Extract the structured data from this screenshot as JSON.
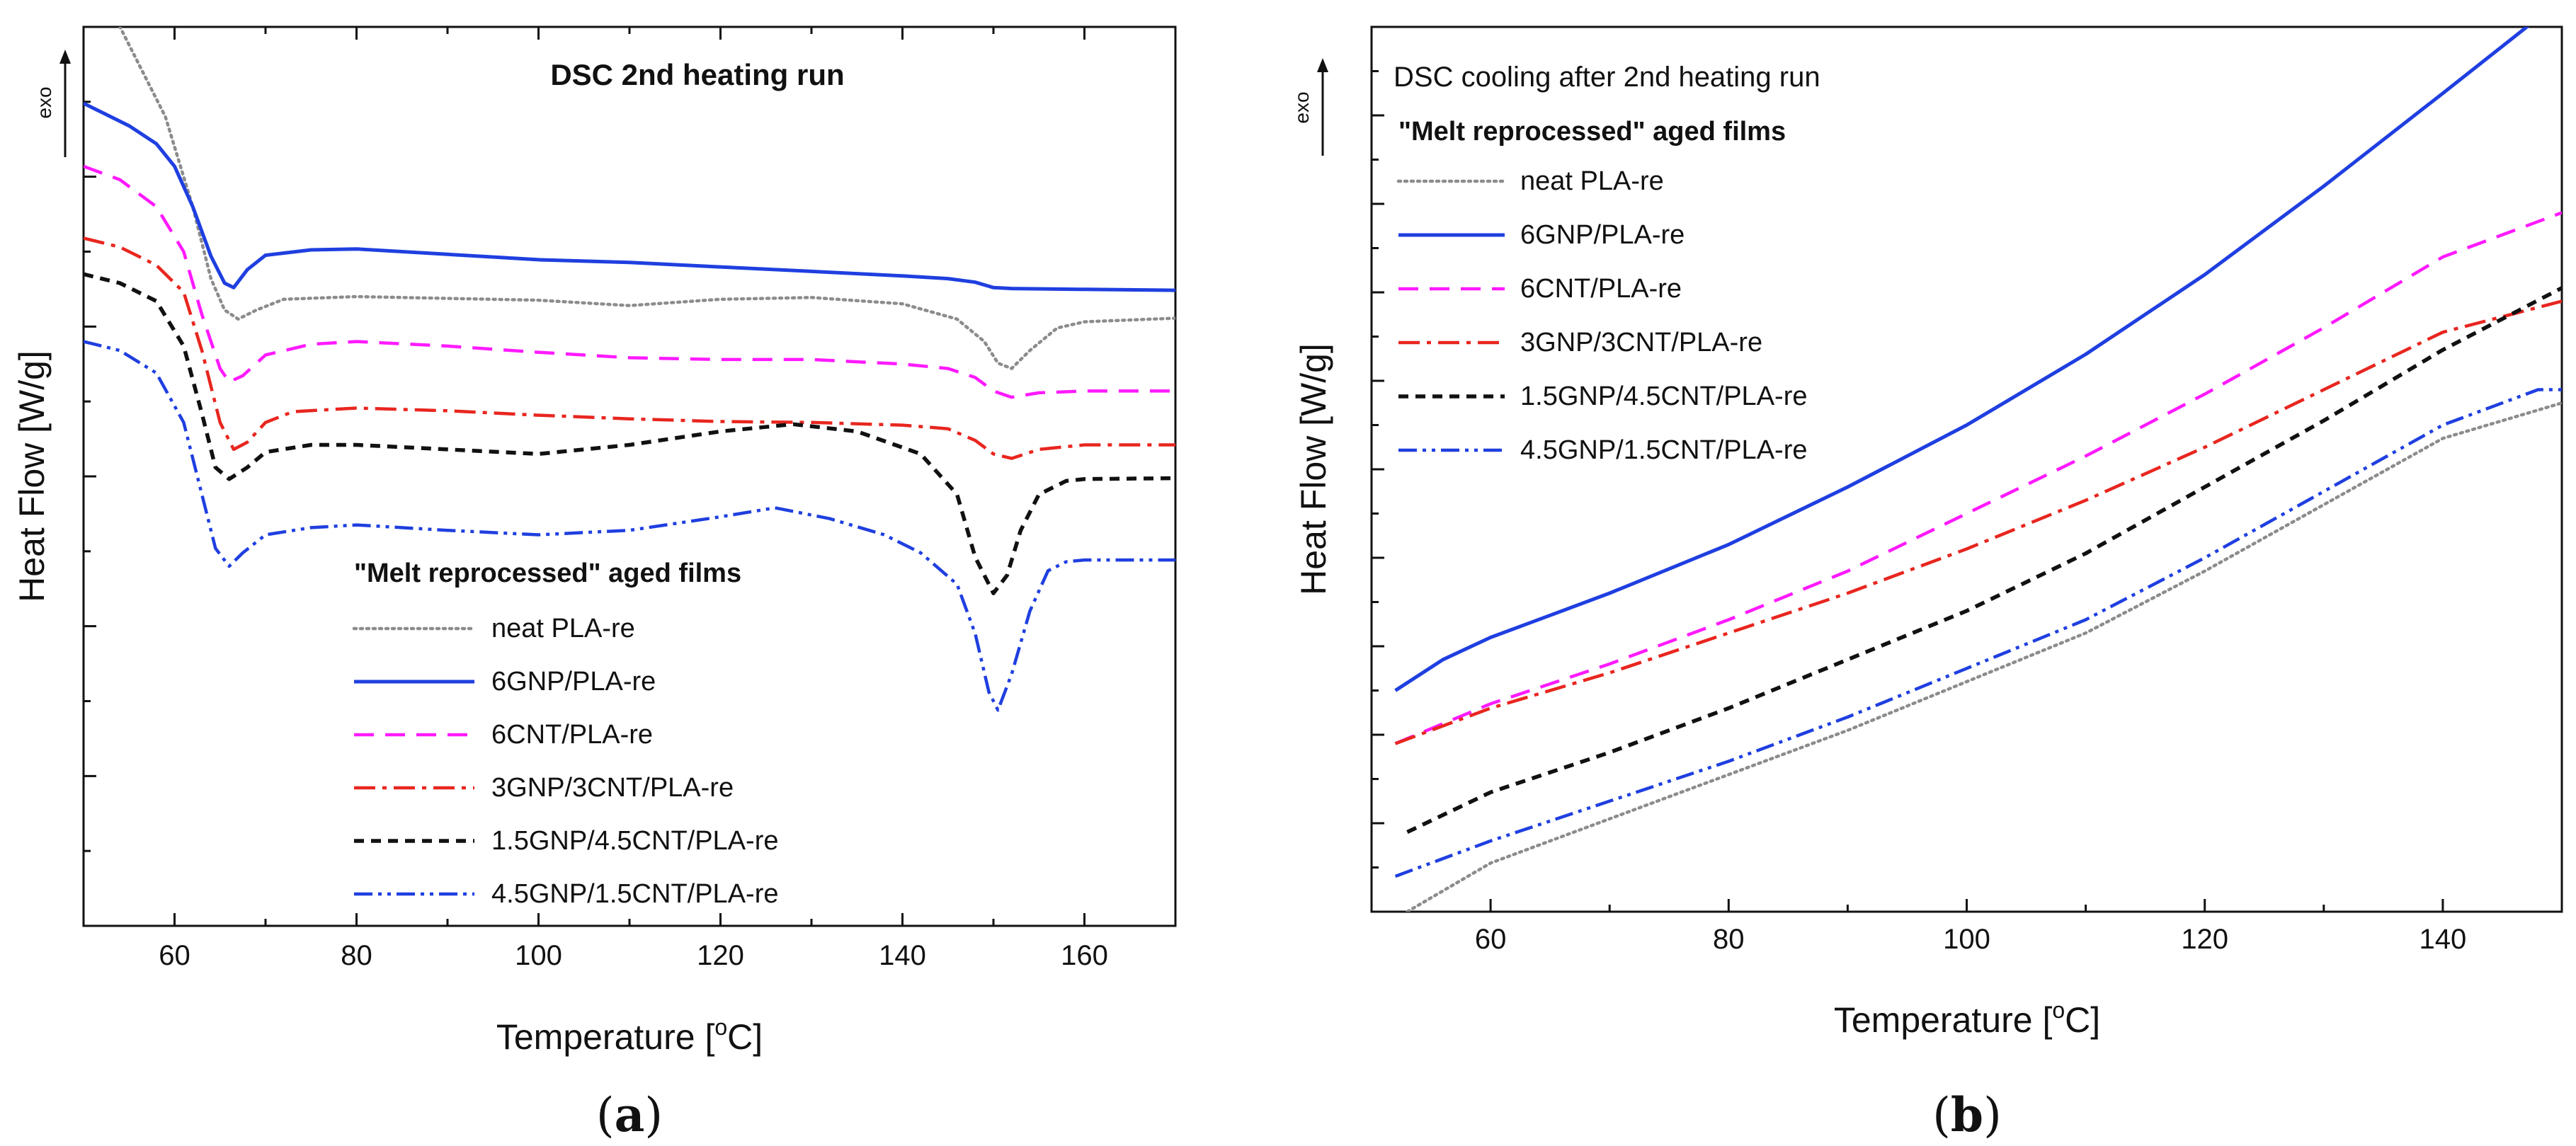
{
  "chart_data": [
    {
      "panel": "(a)",
      "panel_letter": "a",
      "type": "line",
      "title": "DSC 2nd heating run",
      "xlabel": "Temperature [",
      "xlabel_unit": "oC",
      "xlabel_sup": "o",
      "xlabel_rest": "C]",
      "ylabel": "Heat Flow [W/g]",
      "exo_label": "exo",
      "xlim": [
        50,
        170
      ],
      "ylim": [
        0,
        100
      ],
      "x_ticks": [
        60,
        80,
        100,
        120,
        140,
        160
      ],
      "legend_title": "\"Melt reprocessed\" aged films",
      "legend_location": "lower-center",
      "series": [
        {
          "name": "neat PLA-re",
          "color": "#8c8c8c",
          "dash": "dotted",
          "points": [
            [
              53,
              102
            ],
            [
              56,
              96
            ],
            [
              59,
              90
            ],
            [
              62,
              80
            ],
            [
              64,
              72
            ],
            [
              65.5,
              68.5
            ],
            [
              67,
              67.5
            ],
            [
              69,
              68.5
            ],
            [
              72,
              69.7
            ],
            [
              80,
              70
            ],
            [
              100,
              69.6
            ],
            [
              110,
              69
            ],
            [
              120,
              69.7
            ],
            [
              130,
              69.9
            ],
            [
              140,
              69.2
            ],
            [
              146,
              67.5
            ],
            [
              149,
              65
            ],
            [
              150.5,
              62.6
            ],
            [
              152,
              62
            ],
            [
              154,
              64
            ],
            [
              157,
              66.5
            ],
            [
              160,
              67.2
            ],
            [
              170,
              67.6
            ]
          ]
        },
        {
          "name": "6GNP/PLA-re",
          "color": "#1f3fe0",
          "dash": "solid",
          "points": [
            [
              50,
              91.5
            ],
            [
              52,
              90.5
            ],
            [
              55,
              89
            ],
            [
              58,
              87
            ],
            [
              60,
              84.5
            ],
            [
              62,
              80
            ],
            [
              64,
              74.5
            ],
            [
              65.5,
              71.5
            ],
            [
              66.5,
              71
            ],
            [
              68,
              73
            ],
            [
              70,
              74.6
            ],
            [
              75,
              75.2
            ],
            [
              80,
              75.3
            ],
            [
              90,
              74.7
            ],
            [
              100,
              74.1
            ],
            [
              110,
              73.8
            ],
            [
              120,
              73.3
            ],
            [
              130,
              72.8
            ],
            [
              140,
              72.3
            ],
            [
              145,
              72
            ],
            [
              148,
              71.6
            ],
            [
              150,
              71
            ],
            [
              152,
              70.9
            ],
            [
              160,
              70.8
            ],
            [
              170,
              70.7
            ]
          ]
        },
        {
          "name": "6CNT/PLA-re",
          "color": "#ff1aff",
          "dash": "dashed",
          "points": [
            [
              50,
              84.5
            ],
            [
              54,
              83
            ],
            [
              58,
              80
            ],
            [
              61,
              75
            ],
            [
              63,
              68
            ],
            [
              65,
              62
            ],
            [
              66,
              60.5
            ],
            [
              67.5,
              61.2
            ],
            [
              70,
              63.5
            ],
            [
              75,
              64.7
            ],
            [
              80,
              65
            ],
            [
              90,
              64.5
            ],
            [
              100,
              63.8
            ],
            [
              110,
              63.2
            ],
            [
              120,
              63
            ],
            [
              130,
              63
            ],
            [
              140,
              62.5
            ],
            [
              145,
              62
            ],
            [
              148,
              61
            ],
            [
              150,
              59.5
            ],
            [
              152,
              58.8
            ],
            [
              155,
              59.3
            ],
            [
              160,
              59.5
            ],
            [
              170,
              59.5
            ]
          ]
        },
        {
          "name": "3GNP/3CNT/PLA-re",
          "color": "#e8261f",
          "dash": "dashdot",
          "points": [
            [
              50,
              76.5
            ],
            [
              54,
              75.5
            ],
            [
              58,
              73.5
            ],
            [
              61,
              70.5
            ],
            [
              63,
              64
            ],
            [
              65,
              56
            ],
            [
              66.5,
              53
            ],
            [
              68,
              53.8
            ],
            [
              70,
              56
            ],
            [
              73,
              57.2
            ],
            [
              80,
              57.6
            ],
            [
              90,
              57.3
            ],
            [
              100,
              56.8
            ],
            [
              110,
              56.4
            ],
            [
              120,
              56.1
            ],
            [
              130,
              56
            ],
            [
              140,
              55.7
            ],
            [
              145,
              55.3
            ],
            [
              148,
              54
            ],
            [
              150,
              52.5
            ],
            [
              152,
              52
            ],
            [
              155,
              53
            ],
            [
              160,
              53.5
            ],
            [
              170,
              53.5
            ]
          ]
        },
        {
          "name": "1.5GNP/4.5CNT/PLA-re",
          "color": "#111111",
          "dash": "dashed-short",
          "points": [
            [
              50,
              72.5
            ],
            [
              54,
              71.5
            ],
            [
              58,
              69.5
            ],
            [
              61,
              64.5
            ],
            [
              63,
              57
            ],
            [
              64.5,
              51
            ],
            [
              66,
              49.7
            ],
            [
              68,
              51
            ],
            [
              70,
              52.7
            ],
            [
              75,
              53.5
            ],
            [
              80,
              53.5
            ],
            [
              90,
              53
            ],
            [
              100,
              52.5
            ],
            [
              110,
              53.5
            ],
            [
              120,
              55
            ],
            [
              128,
              55.8
            ],
            [
              135,
              55
            ],
            [
              142,
              52.5
            ],
            [
              146,
              48
            ],
            [
              148,
              41
            ],
            [
              150,
              37
            ],
            [
              151.5,
              39
            ],
            [
              153,
              44
            ],
            [
              155,
              48
            ],
            [
              158,
              49.5
            ],
            [
              160,
              49.7
            ],
            [
              170,
              49.8
            ]
          ]
        },
        {
          "name": "4.5GNP/1.5CNT/PLA-re",
          "color": "#1f3fe0",
          "dash": "dashdotdot",
          "points": [
            [
              50,
              65
            ],
            [
              54,
              64
            ],
            [
              58,
              61.5
            ],
            [
              61,
              56
            ],
            [
              63,
              48
            ],
            [
              64.5,
              42
            ],
            [
              66,
              40
            ],
            [
              67.5,
              41.5
            ],
            [
              70,
              43.5
            ],
            [
              75,
              44.3
            ],
            [
              80,
              44.6
            ],
            [
              90,
              44
            ],
            [
              100,
              43.5
            ],
            [
              110,
              44
            ],
            [
              120,
              45.5
            ],
            [
              126,
              46.5
            ],
            [
              132,
              45.3
            ],
            [
              138,
              43.5
            ],
            [
              142,
              41.5
            ],
            [
              146,
              38
            ],
            [
              148,
              32.5
            ],
            [
              149.5,
              26
            ],
            [
              150.5,
              24
            ],
            [
              152,
              28
            ],
            [
              154,
              35
            ],
            [
              156,
              39.5
            ],
            [
              158,
              40.5
            ],
            [
              160,
              40.7
            ],
            [
              170,
              40.7
            ]
          ]
        }
      ]
    },
    {
      "panel": "(b)",
      "panel_letter": "b",
      "type": "line",
      "title": "DSC cooling after 2nd heating run",
      "xlabel": "Temperature [",
      "xlabel_unit": "oC",
      "xlabel_sup": "o",
      "xlabel_rest": "C]",
      "ylabel": "Heat Flow [W/g]",
      "exo_label": "exo",
      "xlim": [
        50,
        150
      ],
      "ylim": [
        0,
        100
      ],
      "x_ticks": [
        60,
        80,
        100,
        120,
        140
      ],
      "legend_title": "\"Melt reprocessed\" aged films",
      "legend_location": "top-left",
      "series": [
        {
          "name": "neat PLA-re",
          "color": "#8c8c8c",
          "dash": "dotted",
          "points": [
            [
              53,
              0
            ],
            [
              60,
              5.5
            ],
            [
              70,
              10.5
            ],
            [
              80,
              15.5
            ],
            [
              90,
              20.5
            ],
            [
              100,
              26
            ],
            [
              110,
              31.5
            ],
            [
              120,
              38.5
            ],
            [
              130,
              46
            ],
            [
              140,
              53.5
            ],
            [
              150,
              57.5
            ]
          ]
        },
        {
          "name": "6GNP/PLA-re",
          "color": "#1f3fe0",
          "dash": "solid",
          "points": [
            [
              52,
              25
            ],
            [
              56,
              28.5
            ],
            [
              60,
              31
            ],
            [
              65,
              33.5
            ],
            [
              70,
              36
            ],
            [
              80,
              41.5
            ],
            [
              90,
              48
            ],
            [
              100,
              55
            ],
            [
              110,
              63
            ],
            [
              120,
              72
            ],
            [
              130,
              82
            ],
            [
              140,
              92.5
            ],
            [
              148,
              101
            ]
          ]
        },
        {
          "name": "6CNT/PLA-re",
          "color": "#ff1aff",
          "dash": "dashed",
          "points": [
            [
              52,
              19
            ],
            [
              60,
              23.5
            ],
            [
              70,
              28
            ],
            [
              80,
              33
            ],
            [
              90,
              38.5
            ],
            [
              100,
              45
            ],
            [
              110,
              51.5
            ],
            [
              120,
              58.5
            ],
            [
              130,
              66
            ],
            [
              140,
              74
            ],
            [
              150,
              79
            ]
          ]
        },
        {
          "name": "3GNP/3CNT/PLA-re",
          "color": "#e8261f",
          "dash": "dashdot",
          "points": [
            [
              52,
              19
            ],
            [
              60,
              23
            ],
            [
              70,
              27
            ],
            [
              80,
              31.5
            ],
            [
              90,
              36
            ],
            [
              100,
              41
            ],
            [
              110,
              46.5
            ],
            [
              120,
              52.5
            ],
            [
              130,
              59
            ],
            [
              140,
              65.5
            ],
            [
              150,
              69
            ]
          ]
        },
        {
          "name": "1.5GNP/4.5CNT/PLA-re",
          "color": "#111111",
          "dash": "dashed-short",
          "points": [
            [
              53,
              9
            ],
            [
              60,
              13.5
            ],
            [
              70,
              18
            ],
            [
              80,
              23
            ],
            [
              90,
              28.5
            ],
            [
              100,
              34
            ],
            [
              110,
              40.5
            ],
            [
              120,
              48
            ],
            [
              130,
              55.5
            ],
            [
              140,
              63.5
            ],
            [
              150,
              70.5
            ]
          ]
        },
        {
          "name": "4.5GNP/1.5CNT/PLA-re",
          "color": "#1f3fe0",
          "dash": "dashdotdot",
          "points": [
            [
              52,
              4
            ],
            [
              60,
              8
            ],
            [
              70,
              12.5
            ],
            [
              80,
              17
            ],
            [
              90,
              22
            ],
            [
              100,
              27.5
            ],
            [
              110,
              33
            ],
            [
              120,
              40
            ],
            [
              130,
              47.5
            ],
            [
              140,
              55
            ],
            [
              148,
              59
            ],
            [
              150,
              59
            ]
          ]
        }
      ]
    }
  ]
}
